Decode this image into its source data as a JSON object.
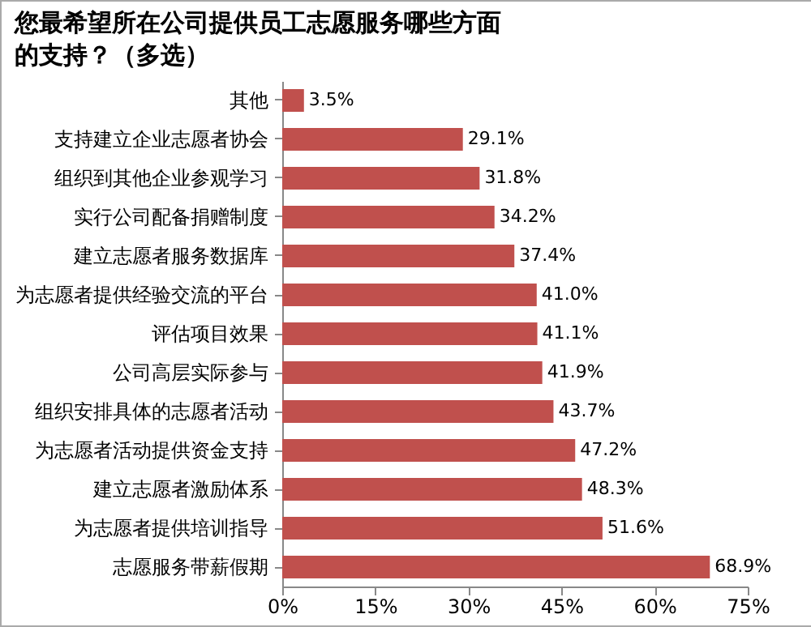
{
  "chart_data": {
    "type": "bar",
    "orientation": "horizontal",
    "title": "您最希望所在公司提供员工志愿服务哪些方面的支持？（多选）",
    "categories": [
      "其他",
      "支持建立企业志愿者协会",
      "组织到其他企业参观学习",
      "实行公司配备捐赠制度",
      "建立志愿者服务数据库",
      "为志愿者提供经验交流的平台",
      "评估项目效果",
      "公司高层实际参与",
      "组织安排具体的志愿者活动",
      "为志愿者活动提供资金支持",
      "建立志愿者激励体系",
      "为志愿者提供培训指导",
      "志愿服务带薪假期"
    ],
    "values": [
      3.5,
      29.1,
      31.8,
      34.2,
      37.4,
      41.0,
      41.1,
      41.9,
      43.7,
      47.2,
      48.3,
      51.6,
      68.9
    ],
    "value_labels": [
      "3.5%",
      "29.1%",
      "31.8%",
      "34.2%",
      "37.4%",
      "41.0%",
      "41.1%",
      "41.9%",
      "43.7%",
      "47.2%",
      "48.3%",
      "51.6%",
      "68.9%"
    ],
    "color": "#c0504d",
    "xlim": [
      0,
      75
    ],
    "xticks": [
      {
        "value": 0,
        "label": "0%"
      },
      {
        "value": 15,
        "label": "15%"
      },
      {
        "value": 30,
        "label": "30%"
      },
      {
        "value": 45,
        "label": "45%"
      },
      {
        "value": 60,
        "label": "60%"
      },
      {
        "value": 75,
        "label": "75%"
      }
    ],
    "grid": false
  }
}
